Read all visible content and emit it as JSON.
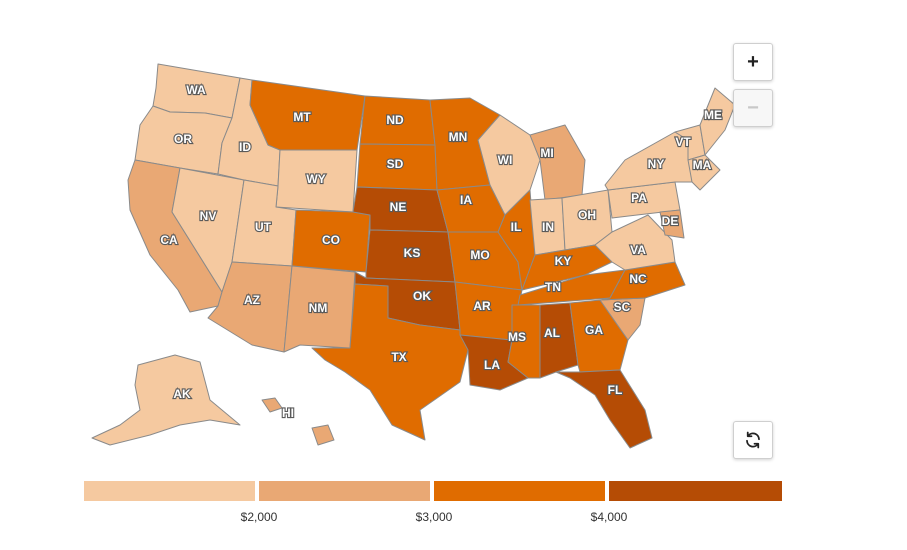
{
  "colors": {
    "c1": "#f5c9a0",
    "c2": "#e9a874",
    "c3": "#e06c00",
    "c4": "#b54c05"
  },
  "controls": {
    "zoom_in": "+",
    "zoom_out": "−",
    "reset_icon": "refresh-icon"
  },
  "legend": {
    "bins": [
      {
        "color": "#f5c9a0",
        "range": "< 2000"
      },
      {
        "color": "#e9a874",
        "range": "2000–3000"
      },
      {
        "color": "#e06c00",
        "range": "3000–4000"
      },
      {
        "color": "#b54c05",
        "range": "> 4000"
      }
    ],
    "ticks": [
      "$2,000",
      "$3,000",
      "$4,000"
    ]
  },
  "states": [
    {
      "abbr": "WA",
      "level": 1
    },
    {
      "abbr": "OR",
      "level": 1
    },
    {
      "abbr": "CA",
      "level": 2
    },
    {
      "abbr": "NV",
      "level": 1
    },
    {
      "abbr": "ID",
      "level": 1
    },
    {
      "abbr": "MT",
      "level": 3
    },
    {
      "abbr": "WY",
      "level": 1
    },
    {
      "abbr": "UT",
      "level": 1
    },
    {
      "abbr": "AZ",
      "level": 2
    },
    {
      "abbr": "CO",
      "level": 3
    },
    {
      "abbr": "NM",
      "level": 2
    },
    {
      "abbr": "ND",
      "level": 3
    },
    {
      "abbr": "SD",
      "level": 3
    },
    {
      "abbr": "NE",
      "level": 4
    },
    {
      "abbr": "KS",
      "level": 4
    },
    {
      "abbr": "OK",
      "level": 4
    },
    {
      "abbr": "TX",
      "level": 3
    },
    {
      "abbr": "MN",
      "level": 3
    },
    {
      "abbr": "IA",
      "level": 3
    },
    {
      "abbr": "MO",
      "level": 3
    },
    {
      "abbr": "AR",
      "level": 3
    },
    {
      "abbr": "LA",
      "level": 4
    },
    {
      "abbr": "WI",
      "level": 1
    },
    {
      "abbr": "MI",
      "level": 2
    },
    {
      "abbr": "IL",
      "level": 3
    },
    {
      "abbr": "IN",
      "level": 1
    },
    {
      "abbr": "OH",
      "level": 1
    },
    {
      "abbr": "KY",
      "level": 3
    },
    {
      "abbr": "TN",
      "level": 3
    },
    {
      "abbr": "MS",
      "level": 3
    },
    {
      "abbr": "AL",
      "level": 4
    },
    {
      "abbr": "GA",
      "level": 3
    },
    {
      "abbr": "FL",
      "level": 4
    },
    {
      "abbr": "SC",
      "level": 2
    },
    {
      "abbr": "NC",
      "level": 3
    },
    {
      "abbr": "VA",
      "level": 1
    },
    {
      "abbr": "PA",
      "level": 1
    },
    {
      "abbr": "NY",
      "level": 1
    },
    {
      "abbr": "DE",
      "level": 2
    },
    {
      "abbr": "VT",
      "level": 1
    },
    {
      "abbr": "MA",
      "level": 1
    },
    {
      "abbr": "ME",
      "level": 1
    },
    {
      "abbr": "AK",
      "level": 1
    },
    {
      "abbr": "HI",
      "level": 2
    }
  ]
}
